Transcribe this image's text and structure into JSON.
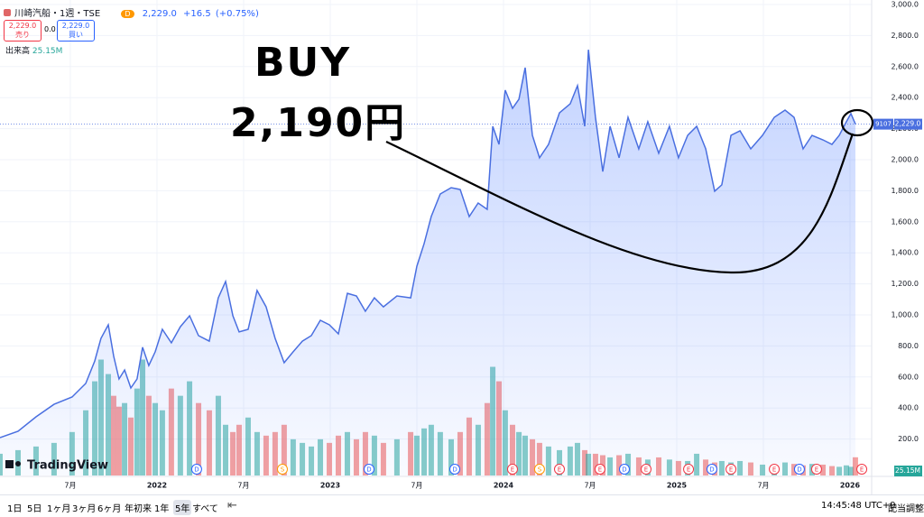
{
  "header": {
    "symbol": "川崎汽船・1週・TSE",
    "interval_chip": "D",
    "price": "2,229.0",
    "change": "+16.5",
    "change_pct": "(+0.75%)",
    "sell_price": "2,229.0",
    "sell_label": "売り",
    "spread": "0.0",
    "buy_price": "2,229.0",
    "buy_label": "買い"
  },
  "chart_data": {
    "type": "area",
    "x": [
      2021.094,
      2021.198,
      2021.302,
      2021.406,
      2021.51,
      2021.589,
      2021.641,
      2021.677,
      2021.719,
      2021.75,
      2021.781,
      2021.813,
      2021.849,
      2021.885,
      2021.917,
      2021.953,
      2021.99,
      2022.031,
      2022.083,
      2022.135,
      2022.188,
      2022.24,
      2022.302,
      2022.354,
      2022.396,
      2022.438,
      2022.474,
      2022.526,
      2022.578,
      2022.63,
      2022.682,
      2022.734,
      2022.786,
      2022.839,
      2022.891,
      2022.943,
      2022.995,
      2023.047,
      2023.099,
      2023.151,
      2023.203,
      2023.255,
      2023.307,
      2023.385,
      2023.464,
      2023.5,
      2023.542,
      2023.583,
      2023.635,
      2023.698,
      2023.75,
      2023.802,
      2023.854,
      2023.906,
      2023.938,
      2023.974,
      2024.01,
      2024.052,
      2024.089,
      2024.125,
      2024.167,
      2024.208,
      2024.26,
      2024.323,
      2024.385,
      2024.427,
      2024.469,
      2024.49,
      2024.531,
      2024.573,
      2024.615,
      2024.667,
      2024.719,
      2024.781,
      2024.833,
      2024.896,
      2024.958,
      2025.01,
      2025.063,
      2025.115,
      2025.167,
      2025.219,
      2025.26,
      2025.313,
      2025.365,
      2025.427,
      2025.495,
      2025.563,
      2025.625,
      2025.677,
      2025.729,
      2025.781,
      2025.844,
      2025.896,
      2025.938,
      2025.979,
      2026.005,
      2026.031
    ],
    "series": [
      {
        "color": "#4a6fe0",
        "symbol_code": "9107",
        "last_label": "2,229.0",
        "values": [
          209,
          250,
          343,
          424,
          471,
          558,
          703,
          849,
          936,
          733,
          587,
          645,
          529,
          587,
          791,
          674,
          762,
          907,
          820,
          924,
          994,
          866,
          831,
          1110,
          1215,
          994,
          890,
          907,
          1157,
          1052,
          849,
          692,
          762,
          831,
          866,
          965,
          936,
          878,
          1139,
          1122,
          1023,
          1110,
          1052,
          1122,
          1110,
          1314,
          1459,
          1634,
          1779,
          1820,
          1808,
          1634,
          1721,
          1680,
          2215,
          2099,
          2448,
          2331,
          2390,
          2593,
          2157,
          2012,
          2099,
          2302,
          2360,
          2477,
          2215,
          2709,
          2273,
          1924,
          2215,
          2012,
          2273,
          2070,
          2245,
          2041,
          2215,
          2012,
          2157,
          2215,
          2070,
          1797,
          1838,
          2157,
          2186,
          2070,
          2157,
          2273,
          2320,
          2273,
          2070,
          2157,
          2128,
          2099,
          2157,
          2245,
          2297,
          2229
        ]
      },
      {
        "name": "出来高",
        "axis": "y2",
        "up_color": "rgba(38,166,154,0.55)",
        "down_color": "rgba(239,83,80,0.55)",
        "last_label": "25.15M",
        "values": [
          30,
          35,
          40,
          45,
          60,
          90,
          130,
          160,
          140,
          110,
          95,
          100,
          80,
          120,
          160,
          110,
          100,
          90,
          120,
          110,
          130,
          100,
          90,
          110,
          70,
          60,
          70,
          80,
          60,
          55,
          60,
          70,
          50,
          45,
          40,
          50,
          45,
          55,
          60,
          50,
          60,
          55,
          45,
          50,
          60,
          55,
          65,
          70,
          60,
          50,
          60,
          80,
          70,
          100,
          150,
          130,
          90,
          70,
          60,
          55,
          50,
          45,
          40,
          35,
          40,
          45,
          35,
          30,
          30,
          28,
          25,
          28,
          30,
          25,
          22,
          25,
          22,
          20,
          20,
          30,
          22,
          18,
          20,
          18,
          20,
          18,
          15,
          15,
          18,
          16,
          14,
          16,
          15,
          13,
          12,
          14,
          12,
          25.15
        ]
      }
    ],
    "xlim": [
      2021.094,
      2026.125
    ],
    "xticks": [
      {
        "value": 2021.5,
        "label": "7月"
      },
      2022,
      {
        "value": 2022.5,
        "label": "7月"
      },
      2023,
      {
        "value": 2023.5,
        "label": "7月"
      },
      2024,
      {
        "value": 2024.5,
        "label": "7月"
      },
      2025,
      {
        "value": 2025.5,
        "label": "7月"
      },
      2026
    ],
    "ylim": [
      0,
      3000
    ],
    "yticks": [
      {
        "value": 200,
        "label": "200.0"
      },
      {
        "value": 400,
        "label": "400.0"
      },
      {
        "value": 600,
        "label": "600.0"
      },
      {
        "value": 800,
        "label": "800.0"
      },
      {
        "value": 1000,
        "label": "1,000.0"
      },
      {
        "value": 1200,
        "label": "1,200.0"
      },
      {
        "value": 1400,
        "label": "1,400.0"
      },
      {
        "value": 1600,
        "label": "1,600.0"
      },
      {
        "value": 1800,
        "label": "1,800.0"
      },
      {
        "value": 2000,
        "label": "2,000.0"
      },
      {
        "value": 2200,
        "label": "2,200.0"
      },
      {
        "value": 2400,
        "label": "2,400.0"
      },
      {
        "value": 2600,
        "label": "2,600.0"
      },
      {
        "value": 2800,
        "label": "2,800.0"
      },
      {
        "value": 3000,
        "label": "3,000.0"
      }
    ],
    "y2lim": [
      0,
      650
    ],
    "grid": true,
    "events": [
      {
        "x": 2022.229,
        "label": "D"
      },
      {
        "x": 2022.724,
        "label": "S"
      },
      {
        "x": 2023.224,
        "label": "D"
      },
      {
        "x": 2023.719,
        "label": "D"
      },
      {
        "x": 2024.052,
        "label": "E"
      },
      {
        "x": 2024.208,
        "label": "S"
      },
      {
        "x": 2024.323,
        "label": "E"
      },
      {
        "x": 2024.557,
        "label": "E"
      },
      {
        "x": 2024.698,
        "label": "D"
      },
      {
        "x": 2024.823,
        "label": "E"
      },
      {
        "x": 2025.068,
        "label": "E"
      },
      {
        "x": 2025.203,
        "label": "D"
      },
      {
        "x": 2025.313,
        "label": "E"
      },
      {
        "x": 2025.563,
        "label": "E"
      },
      {
        "x": 2025.708,
        "label": "D"
      },
      {
        "x": 2025.807,
        "label": "E"
      },
      {
        "x": 2026.068,
        "label": "E"
      }
    ],
    "event_colors": {
      "D": "#2962ff",
      "E": "#f23645",
      "S": "#ff9800"
    }
  },
  "annotations": {
    "line1": "BUY",
    "line2": "2,190円"
  },
  "branding": "TradingView",
  "toolbar": {
    "ranges": [
      "1日",
      "5日",
      "1ヶ月",
      "3ヶ月",
      "6ヶ月",
      "年初来",
      "1年",
      "5年",
      "すべて"
    ],
    "active": "5年",
    "time": "14:45:48 UTC+9",
    "adjust": "配当調整"
  }
}
